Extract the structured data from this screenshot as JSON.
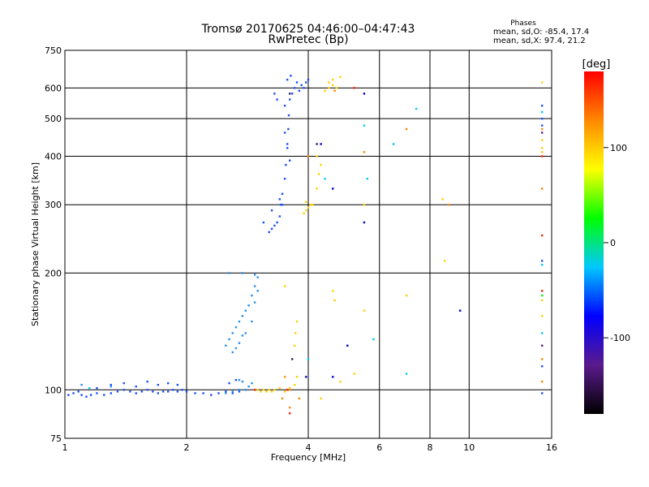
{
  "chart_data": {
    "type": "scatter",
    "title": "Tromsø 20170625 04:46:00–04:47:43",
    "subtitle": "RwPretec (Bp)",
    "xlabel": "Frequency [MHz]",
    "ylabel": "Stationary phase Virtual Height [km]",
    "x_scale": "log",
    "y_scale": "log",
    "xlim": [
      1,
      16
    ],
    "ylim": [
      75,
      750
    ],
    "x_ticks": [
      1,
      2,
      4,
      6,
      8,
      10,
      16
    ],
    "y_ticks": [
      75,
      100,
      200,
      300,
      400,
      500,
      600,
      750
    ],
    "grid": true,
    "phase_stats": {
      "heading": "Phases",
      "line_o": "mean, sd,O: -85.4, 17.4",
      "line_x": "mean, sd,X:  97.4, 21.2"
    },
    "colorbar": {
      "label": "[deg]",
      "ticks": [
        100,
        0,
        -100
      ],
      "range": [
        -180,
        180
      ],
      "colors": [
        "#000000",
        "#5a1a8c",
        "#0000ff",
        "#00c8ff",
        "#00ff00",
        "#ffff00",
        "#ff8800",
        "#ff0000"
      ]
    },
    "series": [
      {
        "color": "#1a50ff",
        "points": [
          [
            1.02,
            97
          ],
          [
            1.05,
            98
          ],
          [
            1.08,
            99
          ],
          [
            1.1,
            97
          ],
          [
            1.13,
            96
          ],
          [
            1.16,
            97
          ],
          [
            1.2,
            98
          ],
          [
            1.25,
            97
          ],
          [
            1.3,
            98
          ],
          [
            1.35,
            99
          ],
          [
            1.4,
            100
          ],
          [
            1.45,
            99
          ],
          [
            1.5,
            98
          ],
          [
            1.55,
            99
          ],
          [
            1.6,
            100
          ],
          [
            1.65,
            99
          ],
          [
            1.7,
            98
          ],
          [
            1.75,
            99
          ],
          [
            1.8,
            99
          ],
          [
            1.85,
            100
          ],
          [
            1.9,
            99
          ],
          [
            1.95,
            100
          ],
          [
            2.0,
            99
          ],
          [
            2.1,
            98
          ],
          [
            2.2,
            98
          ],
          [
            2.3,
            97
          ],
          [
            2.4,
            98
          ],
          [
            2.5,
            99
          ],
          [
            2.6,
            98
          ],
          [
            2.7,
            99
          ],
          [
            2.8,
            100
          ],
          [
            1.2,
            101
          ],
          [
            1.3,
            103
          ],
          [
            1.4,
            104
          ],
          [
            1.5,
            102
          ],
          [
            1.6,
            105
          ],
          [
            1.7,
            103
          ],
          [
            1.8,
            104
          ],
          [
            1.9,
            103
          ],
          [
            2.55,
            104
          ],
          [
            2.65,
            106
          ],
          [
            3.2,
            255
          ],
          [
            3.25,
            260
          ],
          [
            3.3,
            265
          ],
          [
            3.35,
            270
          ],
          [
            3.4,
            280
          ],
          [
            3.42,
            300
          ],
          [
            3.45,
            320
          ],
          [
            3.5,
            350
          ],
          [
            3.52,
            380
          ],
          [
            3.55,
            420
          ],
          [
            3.57,
            470
          ],
          [
            3.58,
            510
          ],
          [
            3.5,
            540
          ],
          [
            3.6,
            560
          ],
          [
            3.65,
            580
          ],
          [
            3.7,
            600
          ],
          [
            3.75,
            620
          ],
          [
            3.8,
            590
          ],
          [
            3.85,
            610
          ],
          [
            3.9,
            600
          ],
          [
            3.95,
            620
          ],
          [
            4.0,
            630
          ],
          [
            3.62,
            645
          ],
          [
            3.55,
            630
          ],
          [
            3.3,
            580
          ],
          [
            3.35,
            560
          ],
          [
            3.6,
            390
          ],
          [
            3.55,
            430
          ],
          [
            3.5,
            460
          ],
          [
            3.45,
            300
          ],
          [
            3.4,
            310
          ],
          [
            3.25,
            290
          ],
          [
            3.1,
            270
          ]
        ]
      },
      {
        "color": "#2890f0",
        "points": [
          [
            2.5,
            130
          ],
          [
            2.55,
            135
          ],
          [
            2.6,
            140
          ],
          [
            2.65,
            145
          ],
          [
            2.7,
            150
          ],
          [
            2.75,
            155
          ],
          [
            2.8,
            160
          ],
          [
            2.85,
            165
          ],
          [
            2.9,
            175
          ],
          [
            2.95,
            185
          ],
          [
            3.0,
            195
          ],
          [
            2.6,
            125
          ],
          [
            2.65,
            128
          ],
          [
            2.7,
            132
          ],
          [
            2.75,
            138
          ],
          [
            2.8,
            140
          ],
          [
            2.9,
            150
          ],
          [
            2.95,
            168
          ],
          [
            3.0,
            180
          ],
          [
            2.5,
            98
          ],
          [
            2.6,
            99
          ],
          [
            2.7,
            100
          ],
          [
            2.8,
            100
          ],
          [
            2.85,
            102
          ],
          [
            2.9,
            104
          ],
          [
            2.7,
            106
          ],
          [
            2.75,
            105
          ],
          [
            2.55,
            200
          ],
          [
            2.75,
            200
          ],
          [
            2.95,
            198
          ],
          [
            1.1,
            103
          ],
          [
            1.3,
            102
          ]
        ]
      },
      {
        "color": "#ffd000",
        "points": [
          [
            3.0,
            100
          ],
          [
            3.05,
            99
          ],
          [
            3.1,
            100
          ],
          [
            3.15,
            99
          ],
          [
            3.2,
            100
          ],
          [
            3.25,
            99
          ],
          [
            3.3,
            100
          ],
          [
            3.4,
            101
          ],
          [
            3.5,
            99
          ],
          [
            3.6,
            101
          ],
          [
            3.7,
            103
          ],
          [
            3.75,
            108
          ],
          [
            3.7,
            130
          ],
          [
            3.72,
            140
          ],
          [
            3.75,
            150
          ],
          [
            3.5,
            185
          ],
          [
            3.9,
            285
          ],
          [
            3.95,
            290
          ],
          [
            4.0,
            295
          ],
          [
            4.05,
            300
          ],
          [
            3.95,
            305
          ],
          [
            4.1,
            300
          ],
          [
            4.2,
            330
          ],
          [
            4.25,
            360
          ],
          [
            4.3,
            380
          ],
          [
            4.2,
            400
          ],
          [
            4.4,
            590
          ],
          [
            4.5,
            620
          ],
          [
            4.6,
            610
          ],
          [
            4.7,
            600
          ],
          [
            4.6,
            630
          ],
          [
            4.8,
            640
          ],
          [
            4.5,
            600
          ],
          [
            5.2,
            110
          ],
          [
            4.3,
            95
          ],
          [
            4.8,
            105
          ],
          [
            5.5,
            300
          ],
          [
            5.5,
            160
          ],
          [
            7.0,
            175
          ],
          [
            8.6,
            310
          ],
          [
            8.7,
            215
          ],
          [
            4.6,
            180
          ],
          [
            4.65,
            170
          ]
        ]
      },
      {
        "color": "#ff8800",
        "points": [
          [
            3.45,
            95
          ],
          [
            3.6,
            90
          ],
          [
            3.5,
            108
          ],
          [
            3.8,
            95
          ],
          [
            4.0,
            400
          ],
          [
            3.6,
            100
          ],
          [
            7.0,
            470
          ],
          [
            8.9,
            300
          ],
          [
            5.5,
            410
          ],
          [
            4.65,
            590
          ]
        ]
      },
      {
        "color": "#ff2000",
        "points": [
          [
            2.95,
            100
          ],
          [
            3.6,
            87
          ],
          [
            3.55,
            100
          ],
          [
            5.2,
            600
          ]
        ]
      },
      {
        "color": "#00c8ff",
        "points": [
          [
            4.0,
            120
          ],
          [
            5.8,
            135
          ],
          [
            7.0,
            110
          ],
          [
            7.4,
            530
          ],
          [
            6.5,
            430
          ],
          [
            5.5,
            480
          ],
          [
            5.6,
            350
          ],
          [
            4.4,
            350
          ],
          [
            1.15,
            101
          ]
        ]
      },
      {
        "color": "#0000c8",
        "points": [
          [
            3.95,
            108
          ],
          [
            4.6,
            330
          ],
          [
            5.0,
            130
          ],
          [
            5.5,
            270
          ],
          [
            5.5,
            580
          ],
          [
            9.5,
            160
          ],
          [
            4.3,
            430
          ],
          [
            4.6,
            108
          ]
        ]
      },
      {
        "color": "#30206a",
        "points": [
          [
            3.65,
            120
          ],
          [
            4.2,
            430
          ],
          [
            3.6,
            580
          ]
        ]
      }
    ],
    "series_at_16": [
      {
        "color": "#ffd000",
        "y": [
          620,
          440,
          420,
          410,
          170,
          155
        ]
      },
      {
        "color": "#ff8800",
        "y": [
          470,
          330,
          120,
          105
        ]
      },
      {
        "color": "#ff2000",
        "y": [
          400,
          250,
          180
        ]
      },
      {
        "color": "#00ff00",
        "y": [
          175
        ]
      },
      {
        "color": "#00c8ff",
        "y": [
          520,
          210,
          140
        ]
      },
      {
        "color": "#1a50ff",
        "y": [
          540,
          500,
          480,
          215,
          115,
          98
        ]
      },
      {
        "color": "#5a1a8c",
        "y": [
          460,
          130
        ]
      }
    ]
  }
}
